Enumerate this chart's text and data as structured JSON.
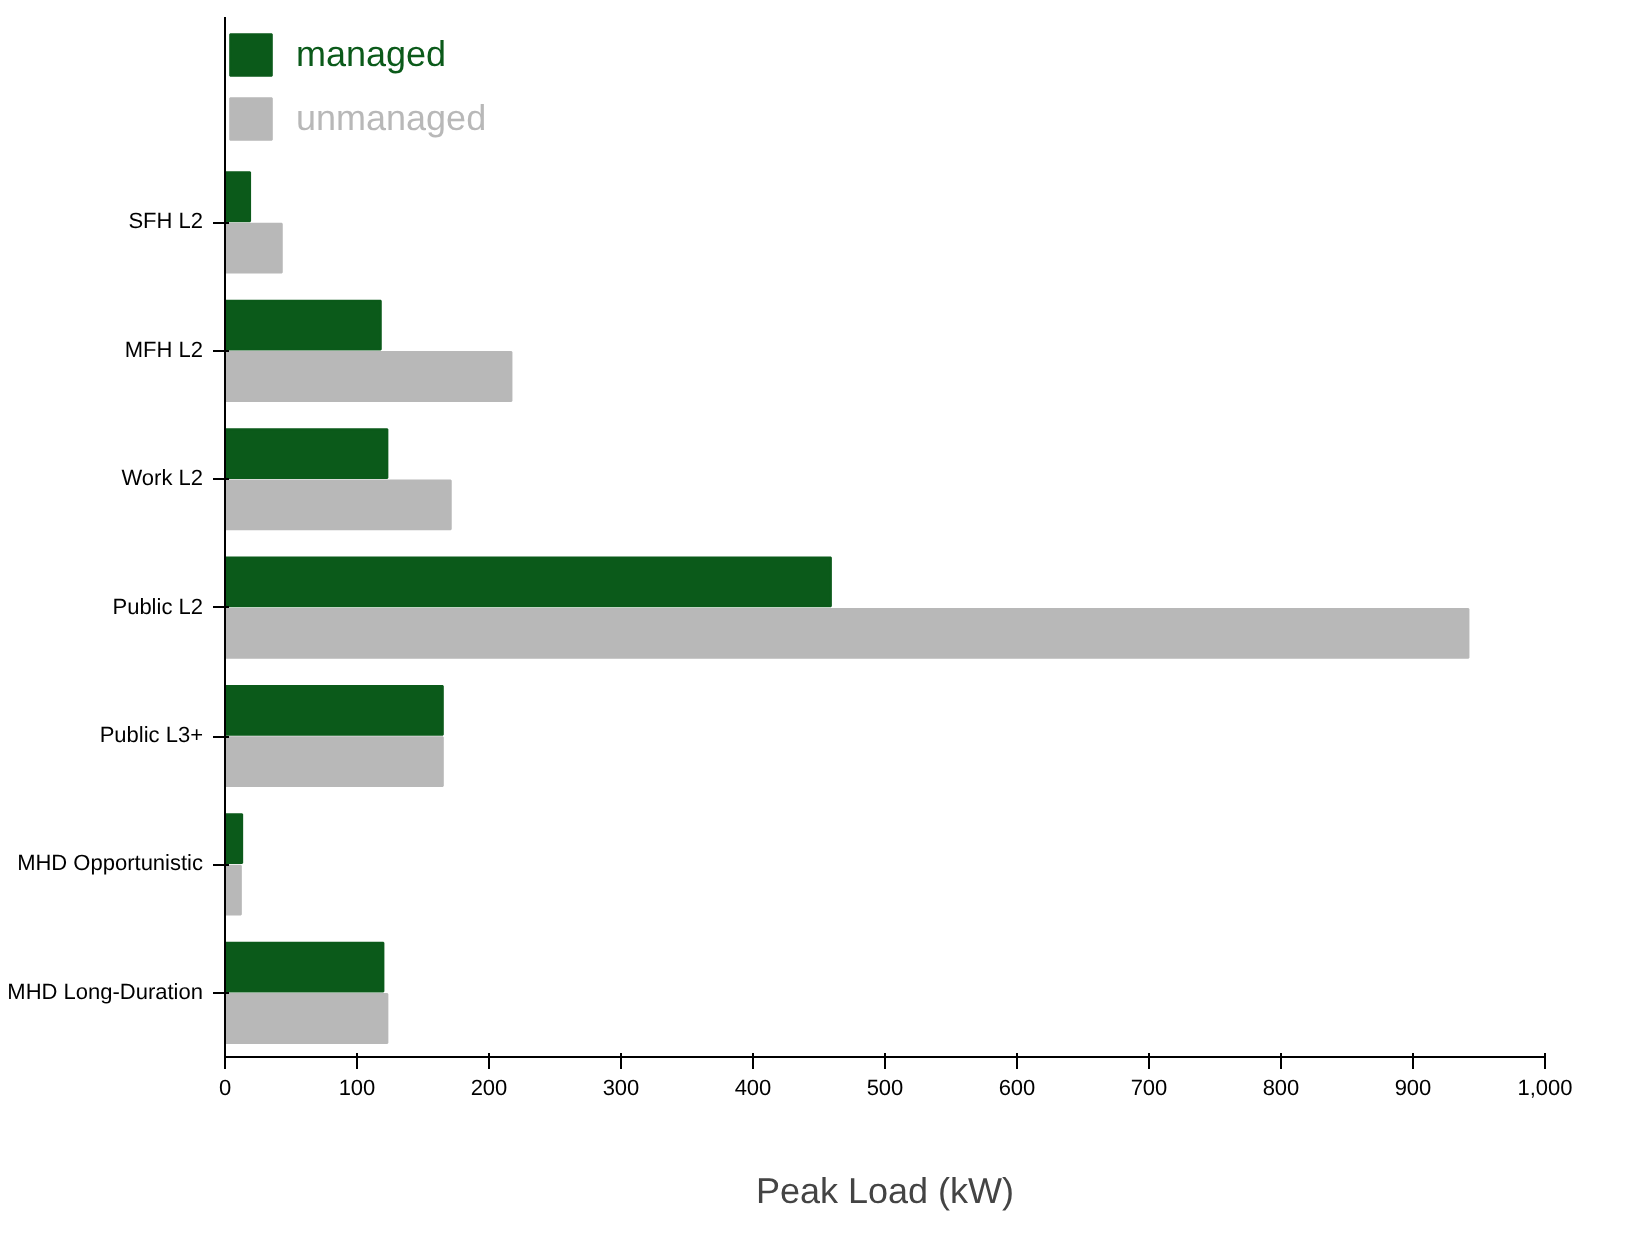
{
  "chart_data": {
    "type": "bar",
    "orientation": "horizontal",
    "xlabel": "Peak Load (kW)",
    "categories": [
      "SFH L2",
      "MFH L2",
      "Work L2",
      "Public L2",
      "Public L3+",
      "MHD Opportunistic",
      "MHD Long-Duration"
    ],
    "series": [
      {
        "name": "managed",
        "color": "#0b5a1a",
        "values": [
          19,
          118,
          123,
          459,
          165,
          13,
          120
        ]
      },
      {
        "name": "unmanaged",
        "color": "#b8b8b8",
        "values": [
          43,
          217,
          171,
          942,
          165,
          12,
          123
        ]
      }
    ],
    "xlim": [
      0,
      1000
    ],
    "xticks": [
      0,
      100,
      200,
      300,
      400,
      500,
      600,
      700,
      800,
      900,
      {
        "value": 1000,
        "label": "1,000"
      }
    ],
    "grid": false,
    "legend": "top left"
  }
}
